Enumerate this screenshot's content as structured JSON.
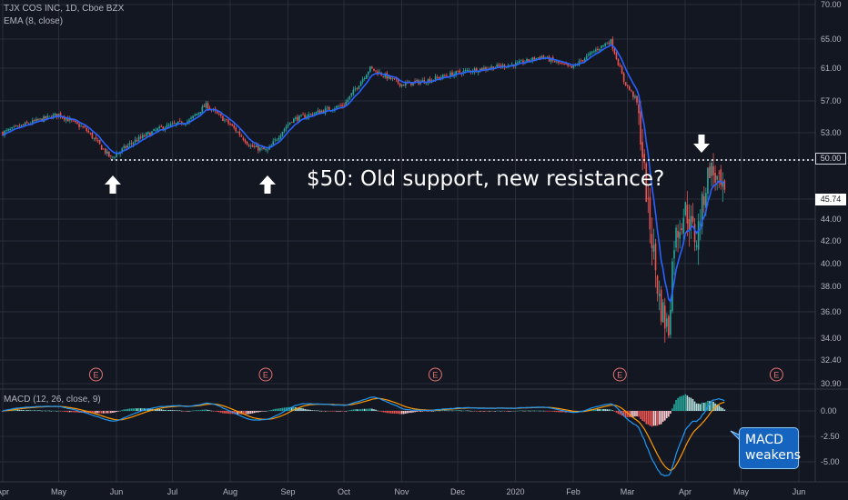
{
  "header": {
    "title": "TJX COS INC, 1D, Cboe BZX",
    "ema_label": "EMA (8, close)",
    "macd_label": "MACD (12, 26, close, 9)"
  },
  "annotations": {
    "main": "$50: Old support, new resistance?",
    "macd_line1": "MACD",
    "macd_line2": "weakens",
    "earnings_marker": "E"
  },
  "colors": {
    "background": "#131722",
    "grid": "#2a2e39",
    "up": "#26a69a",
    "down": "#ef5350",
    "ema": "#2962ff",
    "macd_line": "#2196f3",
    "signal_line": "#ff9800",
    "text": "#b2b5be",
    "annotation": "#ffffff"
  },
  "chart_data": [
    {
      "type": "candlestick",
      "title": "TJX COS INC, 1D, Cboe BZX",
      "series": [
        {
          "name": "EMA (8, close)"
        }
      ],
      "x_ticks": [
        "Apr",
        "May",
        "Jun",
        "Jul",
        "Aug",
        "Sep",
        "Oct",
        "Nov",
        "Dec",
        "2020",
        "Feb",
        "Mar",
        "Apr",
        "May",
        "Jun"
      ],
      "y_ticks": [
        30.9,
        32.4,
        34.0,
        36.0,
        38.0,
        40.0,
        42.0,
        44.0,
        46.0,
        50.0,
        53.0,
        57.0,
        61.0,
        65.0,
        70.0
      ],
      "y_tick_labels": [
        "30.90",
        "32.40",
        "34.00",
        "36.00",
        "38.00",
        "40.00",
        "42.00",
        "44.00",
        "",
        "",
        "53.00",
        "57.00",
        "61.00",
        "65.00",
        "70.00"
      ],
      "last_price": "45.74",
      "resistance_level": "50.00",
      "approx_closes": [
        {
          "date": "2019-04-01",
          "close": 53.0
        },
        {
          "date": "2019-04-15",
          "close": 54.2
        },
        {
          "date": "2019-05-01",
          "close": 55.3
        },
        {
          "date": "2019-05-15",
          "close": 53.5
        },
        {
          "date": "2019-05-29",
          "close": 50.2
        },
        {
          "date": "2019-06-10",
          "close": 52.0
        },
        {
          "date": "2019-06-25",
          "close": 53.6
        },
        {
          "date": "2019-07-10",
          "close": 54.5
        },
        {
          "date": "2019-07-19",
          "close": 56.5
        },
        {
          "date": "2019-08-01",
          "close": 54.0
        },
        {
          "date": "2019-08-12",
          "close": 51.5
        },
        {
          "date": "2019-08-21",
          "close": 51.0
        },
        {
          "date": "2019-09-03",
          "close": 54.6
        },
        {
          "date": "2019-09-20",
          "close": 55.8
        },
        {
          "date": "2019-10-01",
          "close": 56.5
        },
        {
          "date": "2019-10-15",
          "close": 61.0
        },
        {
          "date": "2019-11-01",
          "close": 59.0
        },
        {
          "date": "2019-11-15",
          "close": 59.5
        },
        {
          "date": "2019-12-02",
          "close": 60.5
        },
        {
          "date": "2019-12-16",
          "close": 61.0
        },
        {
          "date": "2020-01-02",
          "close": 61.6
        },
        {
          "date": "2020-01-15",
          "close": 62.6
        },
        {
          "date": "2020-01-31",
          "close": 61.0
        },
        {
          "date": "2020-02-13",
          "close": 63.5
        },
        {
          "date": "2020-02-21",
          "close": 64.8
        },
        {
          "date": "2020-02-28",
          "close": 59.5
        },
        {
          "date": "2020-03-06",
          "close": 57.0
        },
        {
          "date": "2020-03-12",
          "close": 45.0
        },
        {
          "date": "2020-03-18",
          "close": 37.0
        },
        {
          "date": "2020-03-23",
          "close": 34.5
        },
        {
          "date": "2020-03-26",
          "close": 42.0
        },
        {
          "date": "2020-04-01",
          "close": 45.0
        },
        {
          "date": "2020-04-07",
          "close": 42.0
        },
        {
          "date": "2020-04-14",
          "close": 49.3
        },
        {
          "date": "2020-04-17",
          "close": 48.3
        },
        {
          "date": "2020-04-23",
          "close": 45.74
        }
      ],
      "earnings_dates": [
        "2019-05-21",
        "2019-08-20",
        "2019-11-19",
        "2020-02-26",
        "2020-05-20"
      ]
    },
    {
      "type": "macd",
      "title": "MACD (12, 26, close, 9)",
      "series": [
        {
          "name": "MACD"
        },
        {
          "name": "Signal"
        },
        {
          "name": "Histogram"
        }
      ],
      "y_ticks": [
        0.0,
        -2.5,
        -5.0
      ],
      "y_tick_labels": [
        "0.00",
        "-2.50",
        "-5.00"
      ],
      "approx_values": [
        {
          "date": "2019-04-15",
          "macd": 0.1,
          "signal": 0.05
        },
        {
          "date": "2019-05-29",
          "macd": -0.8,
          "signal": -0.5
        },
        {
          "date": "2019-07-19",
          "macd": 0.3,
          "signal": 0.2
        },
        {
          "date": "2019-08-21",
          "macd": -0.6,
          "signal": -0.4
        },
        {
          "date": "2019-10-15",
          "macd": 0.7,
          "signal": 0.5
        },
        {
          "date": "2019-12-02",
          "macd": 0.2,
          "signal": 0.3
        },
        {
          "date": "2020-01-15",
          "macd": 0.3,
          "signal": 0.2
        },
        {
          "date": "2020-02-21",
          "macd": 0.4,
          "signal": 0.45
        },
        {
          "date": "2020-03-06",
          "macd": -1.0,
          "signal": -0.4
        },
        {
          "date": "2020-03-23",
          "macd": -6.0,
          "signal": -3.0
        },
        {
          "date": "2020-04-01",
          "macd": -4.5,
          "signal": -4.5
        },
        {
          "date": "2020-04-14",
          "macd": -1.2,
          "signal": -2.8
        },
        {
          "date": "2020-04-23",
          "macd": -0.5,
          "signal": -1.8
        }
      ]
    }
  ]
}
